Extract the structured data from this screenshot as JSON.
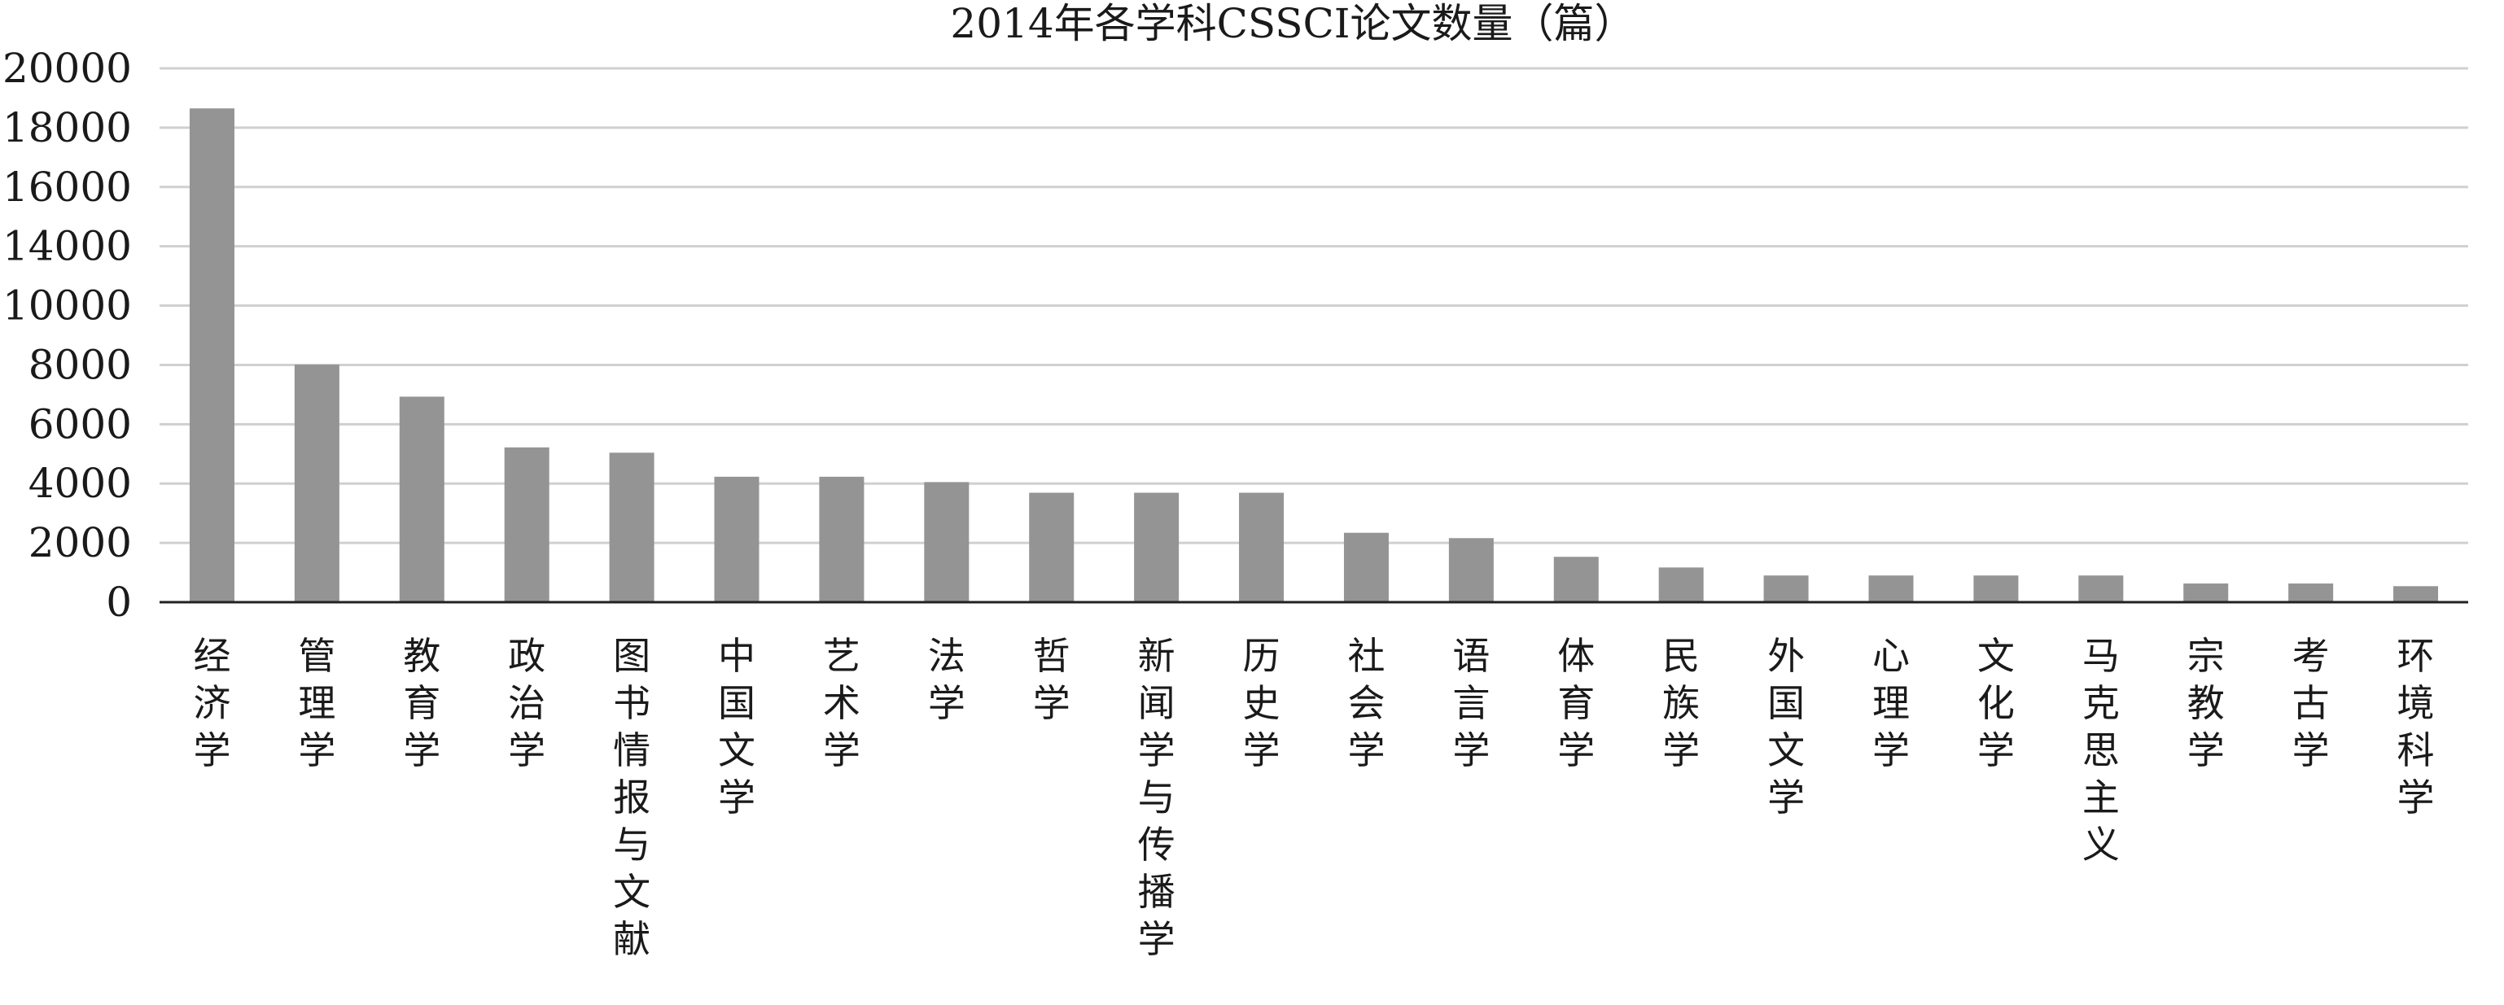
{
  "chart_data": {
    "type": "bar",
    "title": "2014年各学科CSSCI论文数量（篇）",
    "xlabel": "",
    "ylabel": "",
    "ylim": [
      0,
      20000
    ],
    "yticks": [
      "0",
      "2000",
      "4000",
      "6000",
      "8000",
      "10000",
      "14000",
      "16000",
      "18000",
      "20000"
    ],
    "ytick_values": [
      0,
      2000,
      4000,
      6000,
      8000,
      10000,
      14000,
      16000,
      18000,
      20000
    ],
    "grid": true,
    "legend": "none",
    "bar_color": "#949494",
    "categories": [
      "经济学",
      "管理学",
      "教育学",
      "政治学",
      "图书情报与文献",
      "中国文学",
      "艺术学",
      "法学",
      "哲学",
      "新闻学与传播学",
      "历史学",
      "社会学",
      "语言学",
      "体育学",
      "民族学",
      "外国文学",
      "心理学",
      "文化学",
      "马克思主义",
      "宗教学",
      "考古学",
      "环境科学"
    ],
    "values": [
      18500,
      8900,
      7700,
      5800,
      5600,
      4700,
      4700,
      4500,
      4100,
      4100,
      4100,
      2600,
      2400,
      1700,
      1300,
      1000,
      1000,
      1000,
      1000,
      700,
      700,
      600
    ]
  }
}
